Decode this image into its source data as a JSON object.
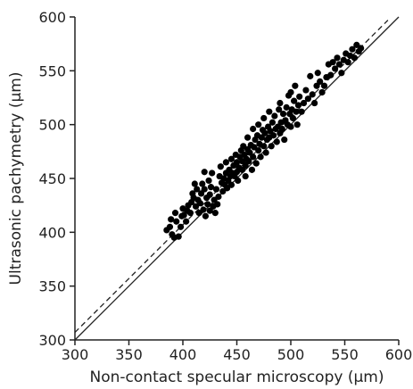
{
  "chart_data": {
    "type": "scatter",
    "title": "",
    "xlabel": "Non-contact specular microscopy (µm)",
    "ylabel": "Ultrasonic pachymetry (µm)",
    "xlim": [
      300,
      600
    ],
    "ylim": [
      300,
      600
    ],
    "x_ticks": [
      300,
      350,
      400,
      450,
      500,
      550,
      600
    ],
    "y_ticks": [
      300,
      350,
      400,
      450,
      500,
      550,
      600
    ],
    "grid": false,
    "legend": "none",
    "marker_color": "#000000",
    "reference_lines": [
      {
        "style": "solid",
        "points": [
          [
            300,
            300
          ],
          [
            600,
            600
          ]
        ]
      },
      {
        "style": "dashed",
        "points": [
          [
            300,
            307
          ],
          [
            590,
            597
          ]
        ]
      }
    ],
    "points": [
      [
        385,
        402
      ],
      [
        388,
        405
      ],
      [
        389,
        412
      ],
      [
        390,
        398
      ],
      [
        392,
        395
      ],
      [
        393,
        418
      ],
      [
        394,
        410
      ],
      [
        396,
        396
      ],
      [
        398,
        405
      ],
      [
        399,
        415
      ],
      [
        400,
        422
      ],
      [
        401,
        416
      ],
      [
        403,
        410
      ],
      [
        404,
        420
      ],
      [
        405,
        425
      ],
      [
        407,
        418
      ],
      [
        408,
        428
      ],
      [
        409,
        436
      ],
      [
        410,
        432
      ],
      [
        411,
        445
      ],
      [
        412,
        424
      ],
      [
        413,
        440
      ],
      [
        414,
        430
      ],
      [
        415,
        418
      ],
      [
        416,
        427
      ],
      [
        417,
        436
      ],
      [
        418,
        445
      ],
      [
        419,
        421
      ],
      [
        420,
        440
      ],
      [
        420,
        456
      ],
      [
        421,
        415
      ],
      [
        422,
        432
      ],
      [
        423,
        426
      ],
      [
        424,
        448
      ],
      [
        425,
        420
      ],
      [
        425,
        435
      ],
      [
        426,
        442
      ],
      [
        427,
        455
      ],
      [
        428,
        424
      ],
      [
        429,
        430
      ],
      [
        430,
        418
      ],
      [
        431,
        440
      ],
      [
        432,
        426
      ],
      [
        433,
        433
      ],
      [
        434,
        452
      ],
      [
        435,
        461
      ],
      [
        436,
        446
      ],
      [
        437,
        438
      ],
      [
        438,
        450
      ],
      [
        439,
        444
      ],
      [
        440,
        455
      ],
      [
        440,
        465
      ],
      [
        441,
        441
      ],
      [
        442,
        448
      ],
      [
        443,
        458
      ],
      [
        444,
        452
      ],
      [
        445,
        444
      ],
      [
        445,
        468
      ],
      [
        446,
        455
      ],
      [
        447,
        462
      ],
      [
        448,
        452
      ],
      [
        449,
        472
      ],
      [
        450,
        456
      ],
      [
        450,
        465
      ],
      [
        451,
        448
      ],
      [
        452,
        460
      ],
      [
        453,
        470
      ],
      [
        454,
        476
      ],
      [
        455,
        458
      ],
      [
        455,
        466
      ],
      [
        456,
        480
      ],
      [
        457,
        472
      ],
      [
        458,
        462
      ],
      [
        458,
        452
      ],
      [
        459,
        468
      ],
      [
        460,
        477
      ],
      [
        460,
        488
      ],
      [
        461,
        466
      ],
      [
        462,
        474
      ],
      [
        463,
        481
      ],
      [
        464,
        458
      ],
      [
        465,
        470
      ],
      [
        465,
        496
      ],
      [
        466,
        479
      ],
      [
        467,
        486
      ],
      [
        468,
        464
      ],
      [
        469,
        490
      ],
      [
        470,
        476
      ],
      [
        470,
        500
      ],
      [
        471,
        482
      ],
      [
        472,
        470
      ],
      [
        473,
        488
      ],
      [
        474,
        495
      ],
      [
        475,
        480
      ],
      [
        475,
        506
      ],
      [
        476,
        492
      ],
      [
        477,
        474
      ],
      [
        478,
        486
      ],
      [
        479,
        498
      ],
      [
        480,
        488
      ],
      [
        480,
        512
      ],
      [
        481,
        494
      ],
      [
        482,
        480
      ],
      [
        483,
        502
      ],
      [
        484,
        490
      ],
      [
        485,
        508
      ],
      [
        486,
        496
      ],
      [
        487,
        484
      ],
      [
        488,
        498
      ],
      [
        489,
        514
      ],
      [
        490,
        492
      ],
      [
        490,
        520
      ],
      [
        491,
        502
      ],
      [
        492,
        496
      ],
      [
        493,
        510
      ],
      [
        494,
        486
      ],
      [
        495,
        504
      ],
      [
        496,
        516
      ],
      [
        497,
        500
      ],
      [
        498,
        527
      ],
      [
        499,
        510
      ],
      [
        500,
        498
      ],
      [
        500,
        530
      ],
      [
        501,
        514
      ],
      [
        502,
        506
      ],
      [
        503,
        522
      ],
      [
        504,
        536
      ],
      [
        505,
        512
      ],
      [
        506,
        500
      ],
      [
        507,
        518
      ],
      [
        508,
        526
      ],
      [
        510,
        512
      ],
      [
        512,
        520
      ],
      [
        514,
        532
      ],
      [
        516,
        524
      ],
      [
        518,
        545
      ],
      [
        520,
        528
      ],
      [
        522,
        520
      ],
      [
        524,
        536
      ],
      [
        525,
        548
      ],
      [
        527,
        540
      ],
      [
        529,
        530
      ],
      [
        531,
        536
      ],
      [
        533,
        544
      ],
      [
        535,
        556
      ],
      [
        537,
        546
      ],
      [
        539,
        558
      ],
      [
        541,
        552
      ],
      [
        543,
        562
      ],
      [
        545,
        556
      ],
      [
        547,
        548
      ],
      [
        549,
        560
      ],
      [
        551,
        566
      ],
      [
        553,
        558
      ],
      [
        555,
        564
      ],
      [
        557,
        570
      ],
      [
        559,
        562
      ],
      [
        561,
        574
      ],
      [
        563,
        568
      ],
      [
        565,
        571
      ]
    ]
  }
}
